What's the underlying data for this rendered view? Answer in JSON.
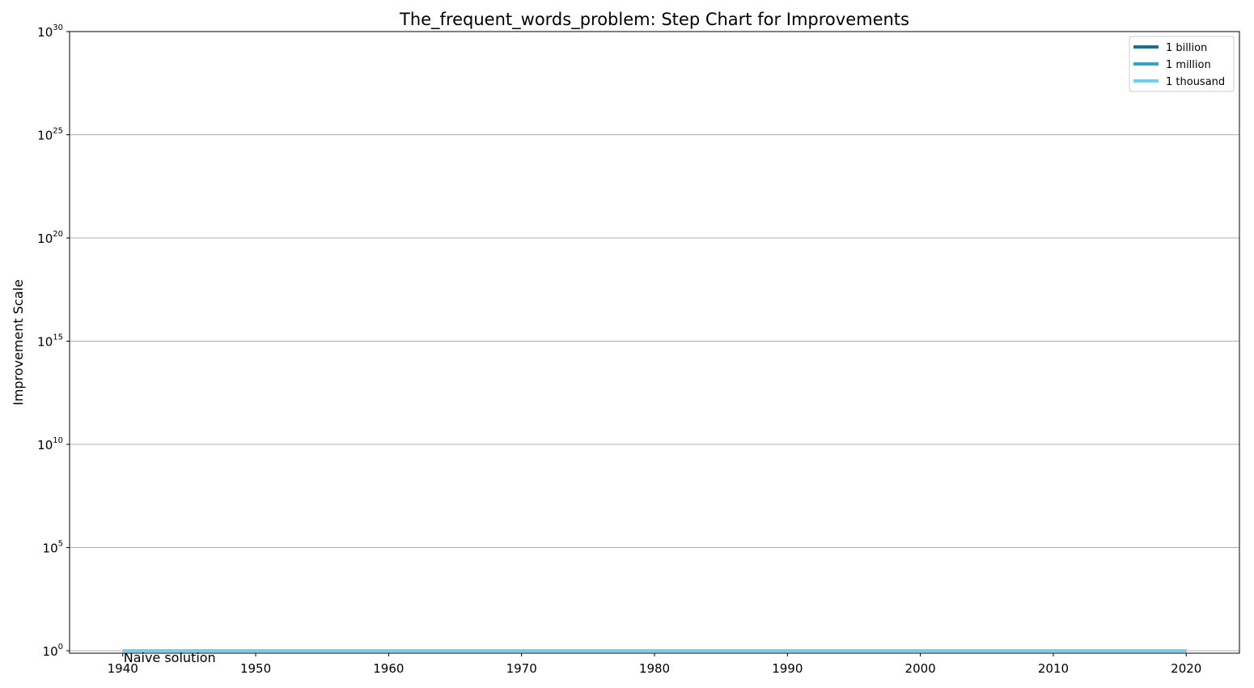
{
  "chart_data": {
    "type": "line",
    "step": true,
    "title": "The_frequent_words_problem: Step Chart for Improvements",
    "xlabel": "",
    "ylabel": "Improvement Scale",
    "xlim": [
      1936,
      2024
    ],
    "ylim": [
      0.7,
      1e+30
    ],
    "yscale": "log",
    "x_ticks": [
      "1940",
      "1950",
      "1960",
      "1970",
      "1980",
      "1990",
      "2000",
      "2010",
      "2020"
    ],
    "y_ticks": [
      {
        "base": "10",
        "exp": "0"
      },
      {
        "base": "10",
        "exp": "5"
      },
      {
        "base": "10",
        "exp": "10"
      },
      {
        "base": "10",
        "exp": "15"
      },
      {
        "base": "10",
        "exp": "20"
      },
      {
        "base": "10",
        "exp": "25"
      },
      {
        "base": "10",
        "exp": "30"
      }
    ],
    "grid": "horizontal",
    "legend_position": "top-right",
    "series": [
      {
        "name": "1 billion",
        "color": "#1a6f8f",
        "x": [
          1940,
          2020
        ],
        "y": [
          1,
          1
        ]
      },
      {
        "name": "1 million",
        "color": "#3b9fc1",
        "x": [
          1940,
          2020
        ],
        "y": [
          1,
          1
        ]
      },
      {
        "name": "1 thousand",
        "color": "#70cfef",
        "x": [
          1940,
          2020
        ],
        "y": [
          1,
          1
        ]
      }
    ],
    "annotations": [
      {
        "text": "Naive solution",
        "x": 1940,
        "y": 1
      }
    ]
  }
}
